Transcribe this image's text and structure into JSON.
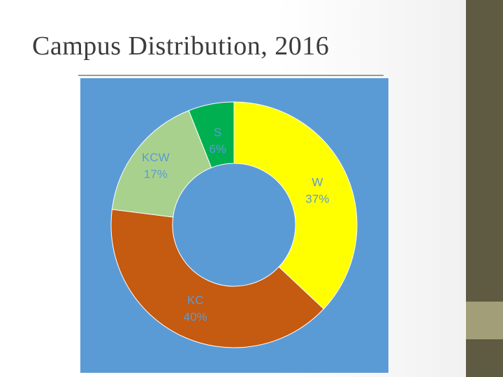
{
  "slide": {
    "title": "Campus Distribution, 2016"
  },
  "chart_data": {
    "type": "pie",
    "style": "donut",
    "title": "",
    "background_color": "#5b9bd5",
    "show_legend": false,
    "slices": [
      {
        "label": "W",
        "value": 37,
        "value_label": "37%",
        "color": "#ffff00",
        "label_color": "#5b9bd5"
      },
      {
        "label": "KC",
        "value": 40,
        "value_label": "40%",
        "color": "#c55a11",
        "label_color": "#5b9bd5"
      },
      {
        "label": "KCW",
        "value": 17,
        "value_label": "17%",
        "color": "#a9d18e",
        "label_color": "#5b9bd5"
      },
      {
        "label": "S",
        "value": 6,
        "value_label": "6%",
        "color": "#00b050",
        "label_color": "#5b9bd5"
      }
    ]
  },
  "colors": {
    "sidebar": "#5f5a42",
    "sidebar_accent": "#a29f78",
    "title_text": "#3c3c3c"
  }
}
